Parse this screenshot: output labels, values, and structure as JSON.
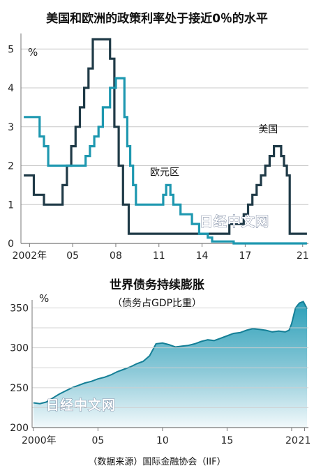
{
  "chart_data": [
    {
      "type": "line",
      "title": "美国和欧洲的政策利率处于接近0％的水平",
      "unit_label": "%",
      "x_tick_labels": [
        "2002年",
        "05",
        "08",
        "11",
        "14",
        "17",
        "21"
      ],
      "y_tick_labels": [
        "0",
        "1",
        "2",
        "3",
        "4",
        "5"
      ],
      "xlim": [
        2001.4,
        2021.4
      ],
      "ylim": [
        0,
        5.4
      ],
      "grid": true,
      "series": [
        {
          "name": "美国",
          "color": "#1f3a47",
          "step": true,
          "x": [
            2001.6,
            2002.3,
            2002.7,
            2003.0,
            2004.0,
            2004.3,
            2004.6,
            2004.9,
            2005.2,
            2005.5,
            2005.8,
            2006.1,
            2006.4,
            2007.6,
            2007.9,
            2008.2,
            2008.5,
            2008.9,
            2015.9,
            2016.9,
            2017.2,
            2017.5,
            2017.8,
            2018.1,
            2018.4,
            2018.7,
            2019.0,
            2019.5,
            2019.7,
            2019.9,
            2020.1,
            2021.3
          ],
          "y": [
            1.75,
            1.25,
            1.25,
            1.0,
            1.0,
            1.5,
            2.0,
            2.5,
            3.0,
            3.5,
            4.0,
            4.5,
            5.25,
            4.75,
            3.0,
            2.0,
            1.0,
            0.25,
            0.5,
            0.75,
            1.0,
            1.25,
            1.5,
            1.75,
            2.0,
            2.25,
            2.5,
            2.25,
            2.0,
            1.75,
            0.25,
            0.25
          ]
        },
        {
          "name": "欧元区",
          "color": "#1e98b0",
          "step": true,
          "x": [
            2001.6,
            2002.4,
            2002.7,
            2003.0,
            2003.3,
            2005.9,
            2006.2,
            2006.5,
            2006.8,
            2007.1,
            2007.6,
            2008.0,
            2008.2,
            2008.6,
            2008.8,
            2009.0,
            2009.2,
            2009.4,
            2011.3,
            2011.5,
            2011.8,
            2012.0,
            2012.5,
            2013.3,
            2013.8,
            2014.4,
            2014.7,
            2016.2,
            2021.3
          ],
          "y": [
            3.25,
            3.25,
            2.75,
            2.5,
            2.0,
            2.25,
            2.5,
            2.75,
            3.0,
            3.5,
            4.0,
            4.25,
            4.25,
            3.25,
            2.5,
            2.0,
            1.5,
            1.0,
            1.25,
            1.5,
            1.25,
            1.0,
            0.75,
            0.5,
            0.25,
            0.15,
            0.05,
            0.0,
            0.0
          ]
        }
      ]
    },
    {
      "type": "area",
      "title": "世界债务持续膨胀",
      "subtitle": "（债务占GDP比重）",
      "unit_label": "%",
      "x_tick_labels": [
        "2000年",
        "05",
        "10",
        "15",
        "20",
        "21"
      ],
      "y_tick_labels": [
        "200",
        "250",
        "300",
        "350"
      ],
      "xlim": [
        1999.9,
        2021.3
      ],
      "ylim": [
        200,
        360
      ],
      "grid": true,
      "series": [
        {
          "color": "#1e98b0",
          "x": [
            2000.0,
            2000.5,
            2001.0,
            2001.5,
            2002.0,
            2002.5,
            2003.0,
            2003.5,
            2004.0,
            2004.5,
            2005.0,
            2005.5,
            2006.0,
            2006.5,
            2007.0,
            2007.5,
            2008.0,
            2008.5,
            2009.0,
            2009.5,
            2010.0,
            2010.5,
            2011.0,
            2011.5,
            2012.0,
            2012.5,
            2013.0,
            2013.5,
            2014.0,
            2014.5,
            2015.0,
            2015.5,
            2016.0,
            2016.5,
            2017.0,
            2017.5,
            2018.0,
            2018.5,
            2019.0,
            2019.5,
            2019.8,
            2020.0,
            2020.3,
            2020.6,
            2020.9,
            2021.2
          ],
          "y": [
            231,
            230,
            232,
            237,
            242,
            246,
            250,
            253,
            256,
            258,
            261,
            263,
            266,
            270,
            273,
            276,
            280,
            283,
            290,
            305,
            306,
            304,
            301,
            302,
            303,
            305,
            308,
            310,
            309,
            312,
            315,
            318,
            319,
            322,
            324,
            323,
            322,
            320,
            321,
            320,
            322,
            330,
            350,
            356,
            358,
            349
          ]
        }
      ]
    }
  ],
  "source_note": "（数据来源）国际金融协会（IIF）",
  "watermark": "日经中文网"
}
